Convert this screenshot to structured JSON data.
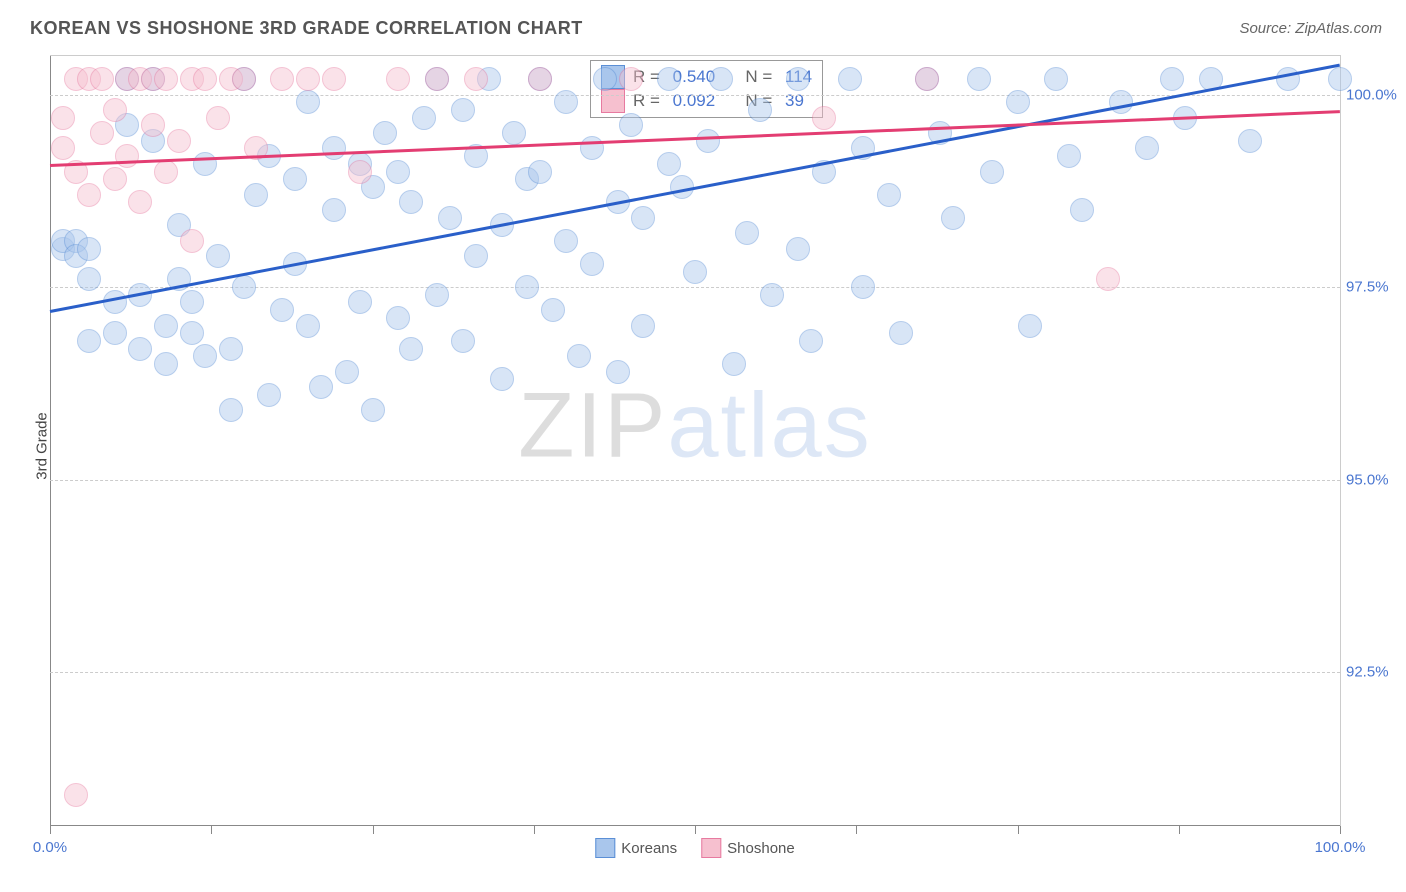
{
  "title": "KOREAN VS SHOSHONE 3RD GRADE CORRELATION CHART",
  "source": "Source: ZipAtlas.com",
  "ylabel": "3rd Grade",
  "watermark_bold": "ZIP",
  "watermark_light": "atlas",
  "chart": {
    "type": "scatter",
    "background_color": "#ffffff",
    "grid_color": "#cccccc",
    "axis_color": "#888888",
    "label_color": "#4a76d0",
    "title_color": "#555555",
    "title_fontsize": 18,
    "label_fontsize": 15,
    "xlim": [
      0,
      100
    ],
    "ylim": [
      90.5,
      100.5
    ],
    "y_gridlines": [
      92.5,
      95.0,
      97.5,
      100.0
    ],
    "y_tick_labels": [
      "92.5%",
      "95.0%",
      "97.5%",
      "100.0%"
    ],
    "x_ticks": [
      0,
      12.5,
      25,
      37.5,
      50,
      62.5,
      75,
      87.5,
      100
    ],
    "x_tick_labels": {
      "0": "0.0%",
      "100": "100.0%"
    },
    "marker_radius": 11,
    "marker_opacity": 0.45,
    "series": [
      {
        "name": "Koreans",
        "fill": "#a9c6ec",
        "stroke": "#5b8fd6",
        "trend_color": "#2a5fc9",
        "trend": {
          "x1": 0,
          "y1": 97.2,
          "x2": 100,
          "y2": 100.4
        },
        "R_label": "R = ",
        "R": "0.540",
        "N_label": "N = ",
        "N": "114",
        "points": [
          [
            1,
            98.0
          ],
          [
            1,
            98.1
          ],
          [
            2,
            98.1
          ],
          [
            2,
            97.9
          ],
          [
            3,
            98.0
          ],
          [
            3,
            97.6
          ],
          [
            3,
            96.8
          ],
          [
            5,
            97.3
          ],
          [
            5,
            96.9
          ],
          [
            6,
            99.6
          ],
          [
            6,
            100.2
          ],
          [
            7,
            97.4
          ],
          [
            7,
            96.7
          ],
          [
            8,
            100.2
          ],
          [
            8,
            99.4
          ],
          [
            9,
            97.0
          ],
          [
            9,
            96.5
          ],
          [
            10,
            97.6
          ],
          [
            10,
            98.3
          ],
          [
            11,
            96.9
          ],
          [
            11,
            97.3
          ],
          [
            12,
            99.1
          ],
          [
            12,
            96.6
          ],
          [
            13,
            97.9
          ],
          [
            14,
            96.7
          ],
          [
            14,
            95.9
          ],
          [
            15,
            100.2
          ],
          [
            15,
            97.5
          ],
          [
            16,
            98.7
          ],
          [
            17,
            99.2
          ],
          [
            17,
            96.1
          ],
          [
            18,
            97.2
          ],
          [
            19,
            98.9
          ],
          [
            19,
            97.8
          ],
          [
            20,
            99.9
          ],
          [
            20,
            97.0
          ],
          [
            21,
            96.2
          ],
          [
            22,
            99.3
          ],
          [
            22,
            98.5
          ],
          [
            23,
            96.4
          ],
          [
            24,
            99.1
          ],
          [
            24,
            97.3
          ],
          [
            25,
            98.8
          ],
          [
            25,
            95.9
          ],
          [
            26,
            99.5
          ],
          [
            27,
            99.0
          ],
          [
            27,
            97.1
          ],
          [
            28,
            98.6
          ],
          [
            28,
            96.7
          ],
          [
            29,
            99.7
          ],
          [
            30,
            97.4
          ],
          [
            30,
            100.2
          ],
          [
            31,
            98.4
          ],
          [
            32,
            99.8
          ],
          [
            32,
            96.8
          ],
          [
            33,
            97.9
          ],
          [
            33,
            99.2
          ],
          [
            34,
            100.2
          ],
          [
            35,
            98.3
          ],
          [
            35,
            96.3
          ],
          [
            36,
            99.5
          ],
          [
            37,
            98.9
          ],
          [
            37,
            97.5
          ],
          [
            38,
            100.2
          ],
          [
            38,
            99.0
          ],
          [
            39,
            97.2
          ],
          [
            40,
            99.9
          ],
          [
            40,
            98.1
          ],
          [
            41,
            96.6
          ],
          [
            42,
            99.3
          ],
          [
            42,
            97.8
          ],
          [
            43,
            100.2
          ],
          [
            44,
            98.6
          ],
          [
            44,
            96.4
          ],
          [
            45,
            99.6
          ],
          [
            46,
            97.0
          ],
          [
            46,
            98.4
          ],
          [
            48,
            99.1
          ],
          [
            48,
            100.2
          ],
          [
            49,
            98.8
          ],
          [
            50,
            97.7
          ],
          [
            51,
            99.4
          ],
          [
            52,
            100.2
          ],
          [
            53,
            96.5
          ],
          [
            54,
            98.2
          ],
          [
            55,
            99.8
          ],
          [
            56,
            97.4
          ],
          [
            58,
            100.2
          ],
          [
            58,
            98.0
          ],
          [
            59,
            96.8
          ],
          [
            60,
            99.0
          ],
          [
            62,
            100.2
          ],
          [
            63,
            97.5
          ],
          [
            63,
            99.3
          ],
          [
            65,
            98.7
          ],
          [
            66,
            96.9
          ],
          [
            68,
            100.2
          ],
          [
            69,
            99.5
          ],
          [
            70,
            98.4
          ],
          [
            72,
            100.2
          ],
          [
            73,
            99.0
          ],
          [
            75,
            99.9
          ],
          [
            76,
            97.0
          ],
          [
            78,
            100.2
          ],
          [
            79,
            99.2
          ],
          [
            80,
            98.5
          ],
          [
            83,
            99.9
          ],
          [
            85,
            99.3
          ],
          [
            87,
            100.2
          ],
          [
            88,
            99.7
          ],
          [
            90,
            100.2
          ],
          [
            93,
            99.4
          ],
          [
            96,
            100.2
          ],
          [
            100,
            100.2
          ]
        ]
      },
      {
        "name": "Shoshone",
        "fill": "#f6c0cf",
        "stroke": "#e77aa0",
        "trend_color": "#e33d72",
        "trend": {
          "x1": 0,
          "y1": 99.1,
          "x2": 100,
          "y2": 99.8
        },
        "R_label": "R = ",
        "R": "0.092",
        "N_label": "N = ",
        "N": "39",
        "points": [
          [
            1,
            99.7
          ],
          [
            1,
            99.3
          ],
          [
            2,
            100.2
          ],
          [
            2,
            99.0
          ],
          [
            3,
            98.7
          ],
          [
            3,
            100.2
          ],
          [
            4,
            99.5
          ],
          [
            4,
            100.2
          ],
          [
            5,
            99.8
          ],
          [
            5,
            98.9
          ],
          [
            6,
            100.2
          ],
          [
            6,
            99.2
          ],
          [
            7,
            100.2
          ],
          [
            7,
            98.6
          ],
          [
            8,
            99.6
          ],
          [
            8,
            100.2
          ],
          [
            9,
            99.0
          ],
          [
            9,
            100.2
          ],
          [
            10,
            99.4
          ],
          [
            11,
            100.2
          ],
          [
            11,
            98.1
          ],
          [
            12,
            100.2
          ],
          [
            13,
            99.7
          ],
          [
            14,
            100.2
          ],
          [
            15,
            100.2
          ],
          [
            16,
            99.3
          ],
          [
            18,
            100.2
          ],
          [
            20,
            100.2
          ],
          [
            22,
            100.2
          ],
          [
            24,
            99.0
          ],
          [
            27,
            100.2
          ],
          [
            30,
            100.2
          ],
          [
            33,
            100.2
          ],
          [
            38,
            100.2
          ],
          [
            45,
            100.2
          ],
          [
            60,
            99.7
          ],
          [
            68,
            100.2
          ],
          [
            82,
            97.6
          ],
          [
            2,
            90.9
          ]
        ]
      }
    ]
  },
  "legend_bottom": [
    {
      "label": "Koreans",
      "fill": "#a9c6ec",
      "stroke": "#5b8fd6"
    },
    {
      "label": "Shoshone",
      "fill": "#f6c0cf",
      "stroke": "#e77aa0"
    }
  ]
}
